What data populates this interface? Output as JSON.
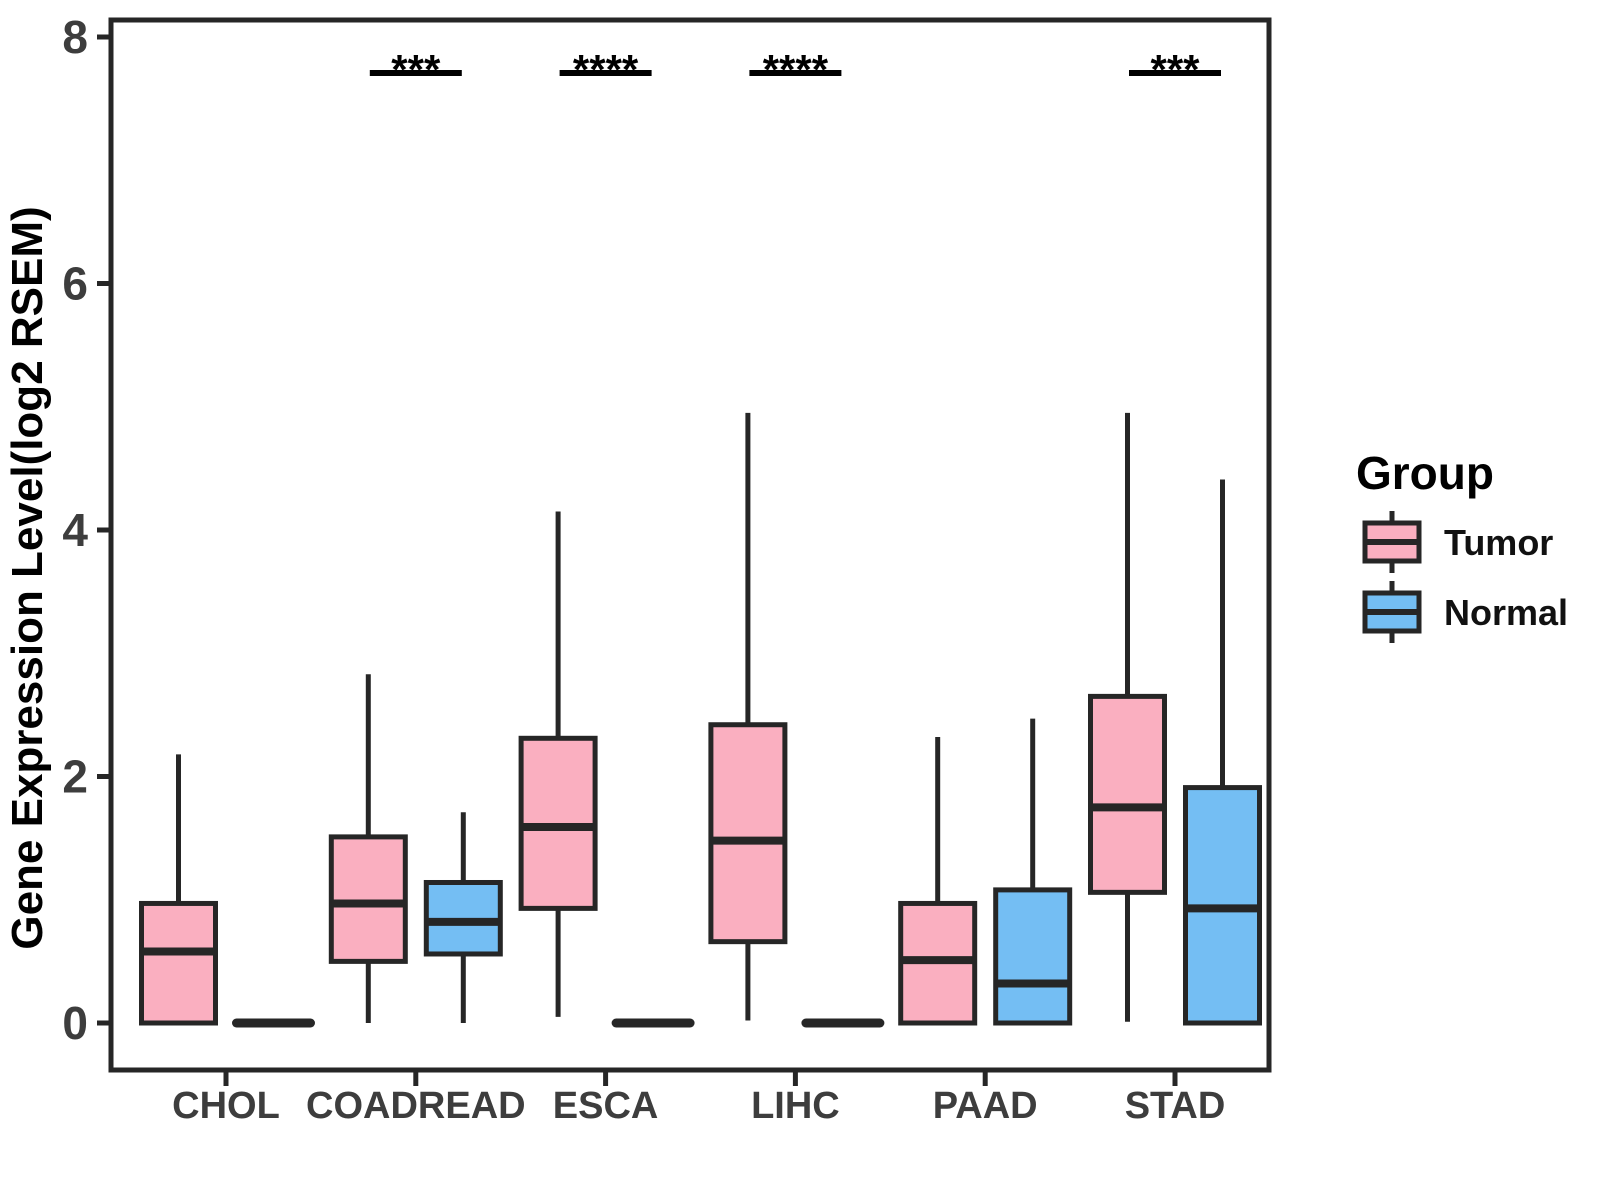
{
  "chart_data": {
    "type": "boxplot",
    "title": "",
    "xlabel": "",
    "ylabel": "Gene Expression Level(log2 RSEM)",
    "ylim": [
      0,
      8
    ],
    "yticks": [
      0,
      2,
      4,
      6,
      8
    ],
    "grid": false,
    "legend_position": "right",
    "categories": [
      "CHOL",
      "COADREAD",
      "ESCA",
      "LIHC",
      "PAAD",
      "STAD"
    ],
    "series": [
      {
        "name": "Tumor",
        "color": "#FAAFC0",
        "values": [
          {
            "min": 0,
            "q1": 0,
            "median": 0.58,
            "q3": 0.97,
            "max": 2.18
          },
          {
            "min": 0,
            "q1": 0.5,
            "median": 0.97,
            "q3": 1.51,
            "max": 2.83
          },
          {
            "min": 0.05,
            "q1": 0.93,
            "median": 1.59,
            "q3": 2.31,
            "max": 4.15
          },
          {
            "min": 0.02,
            "q1": 0.66,
            "median": 1.48,
            "q3": 2.42,
            "max": 4.95
          },
          {
            "min": 0,
            "q1": 0,
            "median": 0.51,
            "q3": 0.97,
            "max": 2.32
          },
          {
            "min": 0.01,
            "q1": 1.06,
            "median": 1.75,
            "q3": 2.65,
            "max": 4.95
          }
        ]
      },
      {
        "name": "Normal",
        "color": "#74BEF3",
        "values": [
          {
            "min": 0,
            "q1": 0,
            "median": 0,
            "q3": 0,
            "max": 0
          },
          {
            "min": 0,
            "q1": 0.56,
            "median": 0.82,
            "q3": 1.14,
            "max": 1.71
          },
          {
            "min": 0,
            "q1": 0,
            "median": 0,
            "q3": 0,
            "max": 0
          },
          {
            "min": 0,
            "q1": 0,
            "median": 0,
            "q3": 0,
            "max": 0
          },
          {
            "min": 0,
            "q1": 0,
            "median": 0.32,
            "q3": 1.08,
            "max": 2.47
          },
          {
            "min": 0,
            "q1": 0,
            "median": 0.93,
            "q3": 1.91,
            "max": 4.41
          }
        ]
      }
    ],
    "annotations": [
      {
        "category": "COADREAD",
        "label": "***"
      },
      {
        "category": "ESCA",
        "label": "****"
      },
      {
        "category": "LIHC",
        "label": "****"
      },
      {
        "category": "STAD",
        "label": "***"
      }
    ]
  },
  "legend": {
    "title": "Group",
    "items": [
      {
        "label": "Tumor",
        "color": "#FAAFC0"
      },
      {
        "label": "Normal",
        "color": "#74BEF3"
      }
    ]
  },
  "colors": {
    "box_border": "#262626",
    "tick_label": "#3D3D3D",
    "text": "#000000",
    "background": "#FFFFFF"
  }
}
